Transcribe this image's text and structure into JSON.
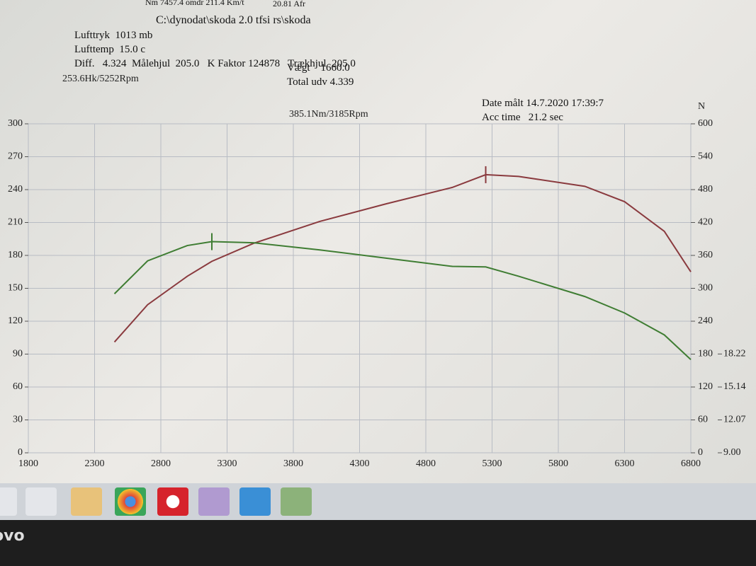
{
  "header": {
    "status_line": "Nm 7457.4 omdr 211.4 Km/t",
    "afr": "20.81 Afr",
    "file": "C:\\dynodat\\skoda 2.0 tfsi rs\\skoda",
    "air_pressure": "Lufttryk  1013 mb",
    "air_temp": "Lufttemp  15.0 c",
    "diff": "Diff.   4.324  Målehjul  205.0   K Faktor 124878   Trækhjul  205.0",
    "weight": "Vægt    1660.0",
    "total_ratio": "Total udv 4.339",
    "date": "Date målt 14.7.2020 17:39:7",
    "acc_time": "Acc time   21.2 sec",
    "bezel_logo": "ovo"
  },
  "chart_data": {
    "type": "line",
    "power_peak_label": "253.6Hk/5252Rpm",
    "torque_peak_label": "385.1Nm/3185Rpm",
    "y2_axis_label": "N",
    "x": [
      2450,
      2700,
      3000,
      3185,
      3500,
      4000,
      4500,
      5000,
      5252,
      5500,
      6000,
      6300,
      6600,
      6800
    ],
    "series": [
      {
        "name": "Hk",
        "color": "#8a3a3e",
        "axis": "y",
        "values": [
          101,
          135,
          161,
          174.6,
          191,
          211,
          227,
          242,
          253.6,
          252,
          243,
          229,
          202,
          165
        ]
      },
      {
        "name": "Nm",
        "color": "#3f7d33",
        "axis": "y2",
        "values": [
          290,
          350,
          378,
          385.1,
          383,
          370,
          355,
          340,
          339,
          322,
          285,
          255,
          215,
          170
        ]
      }
    ],
    "xlim": [
      1800,
      6800
    ],
    "xticks": [
      1800,
      2300,
      2800,
      3300,
      3800,
      4300,
      4800,
      5300,
      5800,
      6300,
      6800
    ],
    "ylim": [
      0,
      300
    ],
    "yticks": [
      0,
      30,
      60,
      90,
      120,
      150,
      180,
      210,
      240,
      270,
      300
    ],
    "y2lim": [
      0,
      600
    ],
    "y2ticks": [
      0,
      60,
      120,
      180,
      240,
      300,
      360,
      420,
      480,
      540,
      600
    ],
    "y3lim": [
      9,
      39.7
    ],
    "y3ticks": [
      {
        "value": 9,
        "label": "9.00"
      },
      12.07,
      15.14,
      18.22
    ],
    "grid": true
  }
}
